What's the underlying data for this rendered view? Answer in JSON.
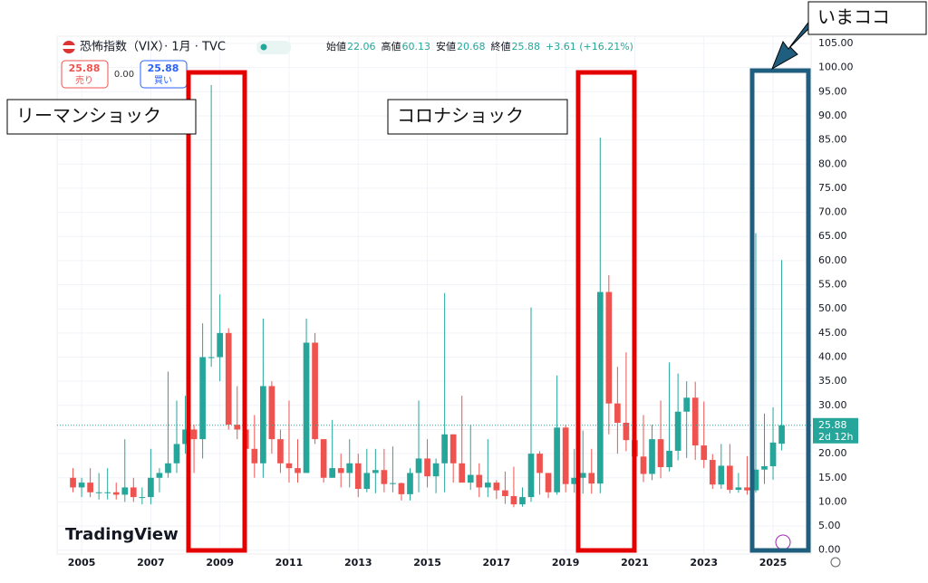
{
  "toolbar": {
    "title": "恐怖指数（VIX）· 1月 · TVC",
    "ohlc": [
      {
        "label": "始値",
        "value": "22.06"
      },
      {
        "label": "高値",
        "value": "60.13"
      },
      {
        "label": "安値",
        "value": "20.68"
      },
      {
        "label": "終値",
        "value": "25.88"
      }
    ],
    "change": "+3.61 (+16.21%)",
    "sell_price": "25.88",
    "sell_label": "売り",
    "spread": "0.00",
    "buy_price": "25.88",
    "buy_label": "買い"
  },
  "chart_data": {
    "type": "candlestick",
    "up_color": "#26a69a",
    "down_color": "#ef5350",
    "grid": true,
    "x": [
      2004.75,
      2005,
      2005.25,
      2005.5,
      2005.75,
      2006,
      2006.25,
      2006.5,
      2006.75,
      2007,
      2007.25,
      2007.5,
      2007.75,
      2008,
      2008.25,
      2008.5,
      2008.75,
      2009,
      2009.25,
      2009.5,
      2009.75,
      2010,
      2010.25,
      2010.5,
      2010.75,
      2011,
      2011.25,
      2011.5,
      2011.75,
      2012,
      2012.25,
      2012.5,
      2012.75,
      2013,
      2013.25,
      2013.5,
      2013.75,
      2014,
      2014.25,
      2014.5,
      2014.75,
      2015,
      2015.25,
      2015.5,
      2015.75,
      2016,
      2016.25,
      2016.5,
      2016.75,
      2017,
      2017.25,
      2017.5,
      2017.75,
      2018,
      2018.25,
      2018.5,
      2018.75,
      2019,
      2019.25,
      2019.5,
      2019.75,
      2020,
      2020.25,
      2020.5,
      2020.75,
      2021,
      2021.25,
      2021.5,
      2021.75,
      2022,
      2022.25,
      2022.5,
      2022.75,
      2023,
      2023.25,
      2023.5,
      2023.75,
      2024,
      2024.25,
      2024.5,
      2024.75,
      2025,
      2025.25
    ],
    "open": [
      15,
      13,
      14,
      12,
      12,
      12,
      11.5,
      13,
      11,
      11,
      15,
      16,
      18,
      22,
      25,
      23,
      40,
      40,
      45,
      26,
      25,
      21,
      18,
      34,
      23,
      18,
      17,
      16,
      43,
      23,
      15,
      17,
      16,
      18,
      12.7,
      16,
      16.6,
      13.7,
      13.9,
      11.6,
      16,
      19,
      15.3,
      18,
      24,
      18,
      14,
      15.6,
      13,
      14,
      12.4,
      11.2,
      9.5,
      11,
      20,
      16,
      12,
      25.4,
      13.7,
      15,
      16,
      13.8,
      53.5,
      30.4,
      26.4,
      22.8,
      19.4,
      15.8,
      23,
      17.2,
      20.6,
      28.7,
      31.6,
      21.7,
      18.7,
      13.6,
      17.5,
      12.5,
      13,
      12.4,
      16.7,
      17.4,
      22.06
    ],
    "high": [
      17,
      15,
      17,
      16,
      17,
      14,
      23,
      15,
      13,
      21,
      17,
      37,
      31,
      32,
      26,
      47,
      96.4,
      53,
      46,
      34,
      28,
      28,
      48,
      35,
      25,
      31,
      23,
      48,
      45,
      23,
      27,
      20,
      23,
      20,
      21,
      21,
      21,
      21.5,
      14,
      17,
      31,
      23,
      19,
      53.3,
      24,
      32,
      26,
      18,
      23,
      14.5,
      16.3,
      17.3,
      13,
      50.3,
      20.5,
      16,
      36.2,
      26,
      21,
      24.8,
      21,
      85.5,
      57,
      38,
      41,
      37.5,
      28,
      26,
      31,
      38.9,
      36.6,
      35,
      34.9,
      30.8,
      19.9,
      22,
      22,
      16,
      19.5,
      65.7,
      28.3,
      29.6,
      60.13
    ],
    "low": [
      12,
      11,
      11,
      10.5,
      10.5,
      10.5,
      10,
      10,
      9.5,
      9.5,
      12,
      15,
      16,
      20,
      16,
      19,
      38,
      35,
      25,
      23,
      19,
      15,
      15,
      20,
      16,
      14,
      14,
      16,
      22,
      14,
      15,
      13,
      13,
      11,
      12,
      11.8,
      12,
      12,
      10.3,
      10.3,
      12,
      13,
      11.8,
      12,
      14,
      14,
      12.5,
      11,
      11,
      10.6,
      9.6,
      8.9,
      9,
      10,
      11.5,
      10.8,
      11.5,
      12,
      11.9,
      11.7,
      11.7,
      11.8,
      24,
      20,
      20.5,
      18,
      14.1,
      14.5,
      14.9,
      16.3,
      18.6,
      19.1,
      18.7,
      17,
      12.7,
      12.7,
      11.8,
      11.9,
      11.5,
      11.9,
      13.7,
      14.6,
      20.68
    ],
    "close": [
      13,
      14,
      12,
      12,
      12,
      11.5,
      13,
      11,
      11,
      15,
      16,
      18,
      22,
      25,
      23,
      40,
      40,
      45,
      26,
      25,
      21,
      18,
      34,
      23,
      18,
      17,
      16,
      43,
      23,
      15,
      17,
      16,
      18,
      12.7,
      16,
      16.6,
      13.7,
      13.9,
      11.6,
      16,
      19,
      15.3,
      18,
      24,
      18,
      14,
      15.6,
      13,
      14,
      12.4,
      11.2,
      9.5,
      11,
      20,
      16,
      12,
      25.4,
      13.7,
      15,
      16,
      13.8,
      53.5,
      30.4,
      26.4,
      22.8,
      19.4,
      15.8,
      23,
      17.2,
      20.6,
      28.7,
      31.6,
      21.7,
      18.7,
      13.6,
      17.5,
      12.5,
      13,
      12.4,
      16.7,
      17.4,
      22.3,
      25.88
    ],
    "last_countdown": "2d 12h",
    "xlim": [
      2004.29,
      2026.1
    ],
    "ylim": [
      -0.8,
      106.5
    ],
    "xticks": [
      2005,
      2007,
      2009,
      2011,
      2013,
      2015,
      2017,
      2019,
      2021,
      2023,
      2025
    ],
    "yticks": [
      {
        "value": 0,
        "label": "0.00"
      },
      {
        "value": 5,
        "label": "5.00"
      },
      {
        "value": 10,
        "label": "10.00"
      },
      {
        "value": 15,
        "label": "15.00"
      },
      {
        "value": 20,
        "label": "20.00"
      },
      {
        "value": 25,
        "label": "25.00"
      },
      {
        "value": 30,
        "label": "30.00"
      },
      {
        "value": 35,
        "label": "35.00"
      },
      {
        "value": 40,
        "label": "40.00"
      },
      {
        "value": 45,
        "label": "45.00"
      },
      {
        "value": 50,
        "label": "50.00"
      },
      {
        "value": 55,
        "label": "55.00"
      },
      {
        "value": 60,
        "label": "60.00"
      },
      {
        "value": 65,
        "label": "65.00"
      },
      {
        "value": 70,
        "label": "70.00"
      },
      {
        "value": 75,
        "label": "75.00"
      },
      {
        "value": 80,
        "label": "80.00"
      },
      {
        "value": 85,
        "label": "85.00"
      },
      {
        "value": 90,
        "label": "90.00"
      },
      {
        "value": 95,
        "label": "95.00"
      },
      {
        "value": 100,
        "label": "100.00"
      },
      {
        "value": 105,
        "label": "105.00"
      }
    ],
    "watermark": "TradingView",
    "annotations": [
      {
        "text": "リーマンショック"
      },
      {
        "text": "コロナショック"
      },
      {
        "text": "いまココ"
      }
    ]
  }
}
